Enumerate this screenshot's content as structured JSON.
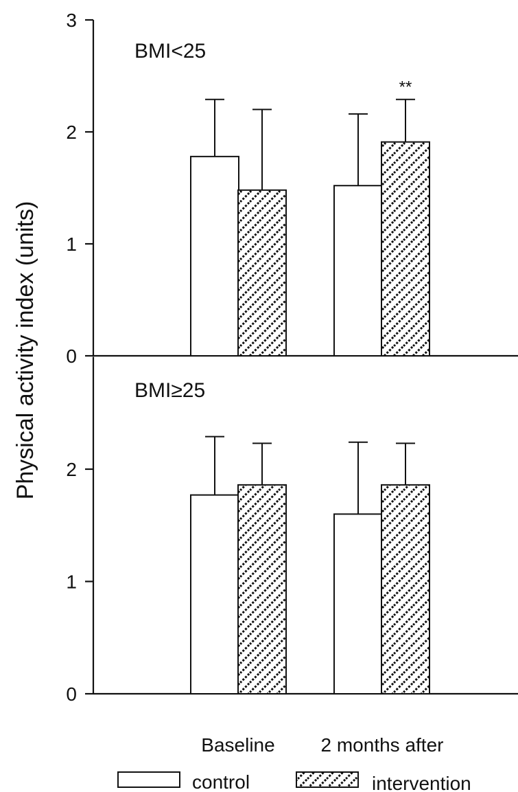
{
  "chart_data": [
    {
      "type": "bar",
      "panel_label": "BMI<25",
      "categories": [
        "Baseline",
        "2 months after"
      ],
      "series": [
        {
          "name": "control",
          "values": [
            1.78,
            1.52
          ],
          "error": [
            0.51,
            0.64
          ],
          "annotations": [
            "",
            ""
          ]
        },
        {
          "name": "intervention",
          "values": [
            1.48,
            1.91
          ],
          "error": [
            0.72,
            0.38
          ],
          "annotations": [
            "",
            "**"
          ]
        }
      ],
      "ylim": [
        0,
        3
      ],
      "yticks": [
        "0",
        "1",
        "2",
        "3"
      ]
    },
    {
      "type": "bar",
      "panel_label": "BMI≥25",
      "categories": [
        "Baseline",
        "2 months after"
      ],
      "series": [
        {
          "name": "control",
          "values": [
            1.77,
            1.6
          ],
          "error": [
            0.52,
            0.64
          ],
          "annotations": [
            "",
            ""
          ]
        },
        {
          "name": "intervention",
          "values": [
            1.86,
            1.86
          ],
          "error": [
            0.37,
            0.37
          ],
          "annotations": [
            "",
            ""
          ]
        }
      ],
      "ylim": [
        0,
        3
      ],
      "yticks": [
        "0",
        "1",
        "2"
      ]
    }
  ],
  "ylabel": "Physical activity index (units)",
  "x_labels": [
    "Baseline",
    "2 months after"
  ],
  "legend": [
    {
      "label": "control",
      "pattern": "open"
    },
    {
      "label": "intervention",
      "pattern": "hatched"
    }
  ],
  "colors": {
    "ink": "#111111",
    "fill": "#ffffff"
  }
}
